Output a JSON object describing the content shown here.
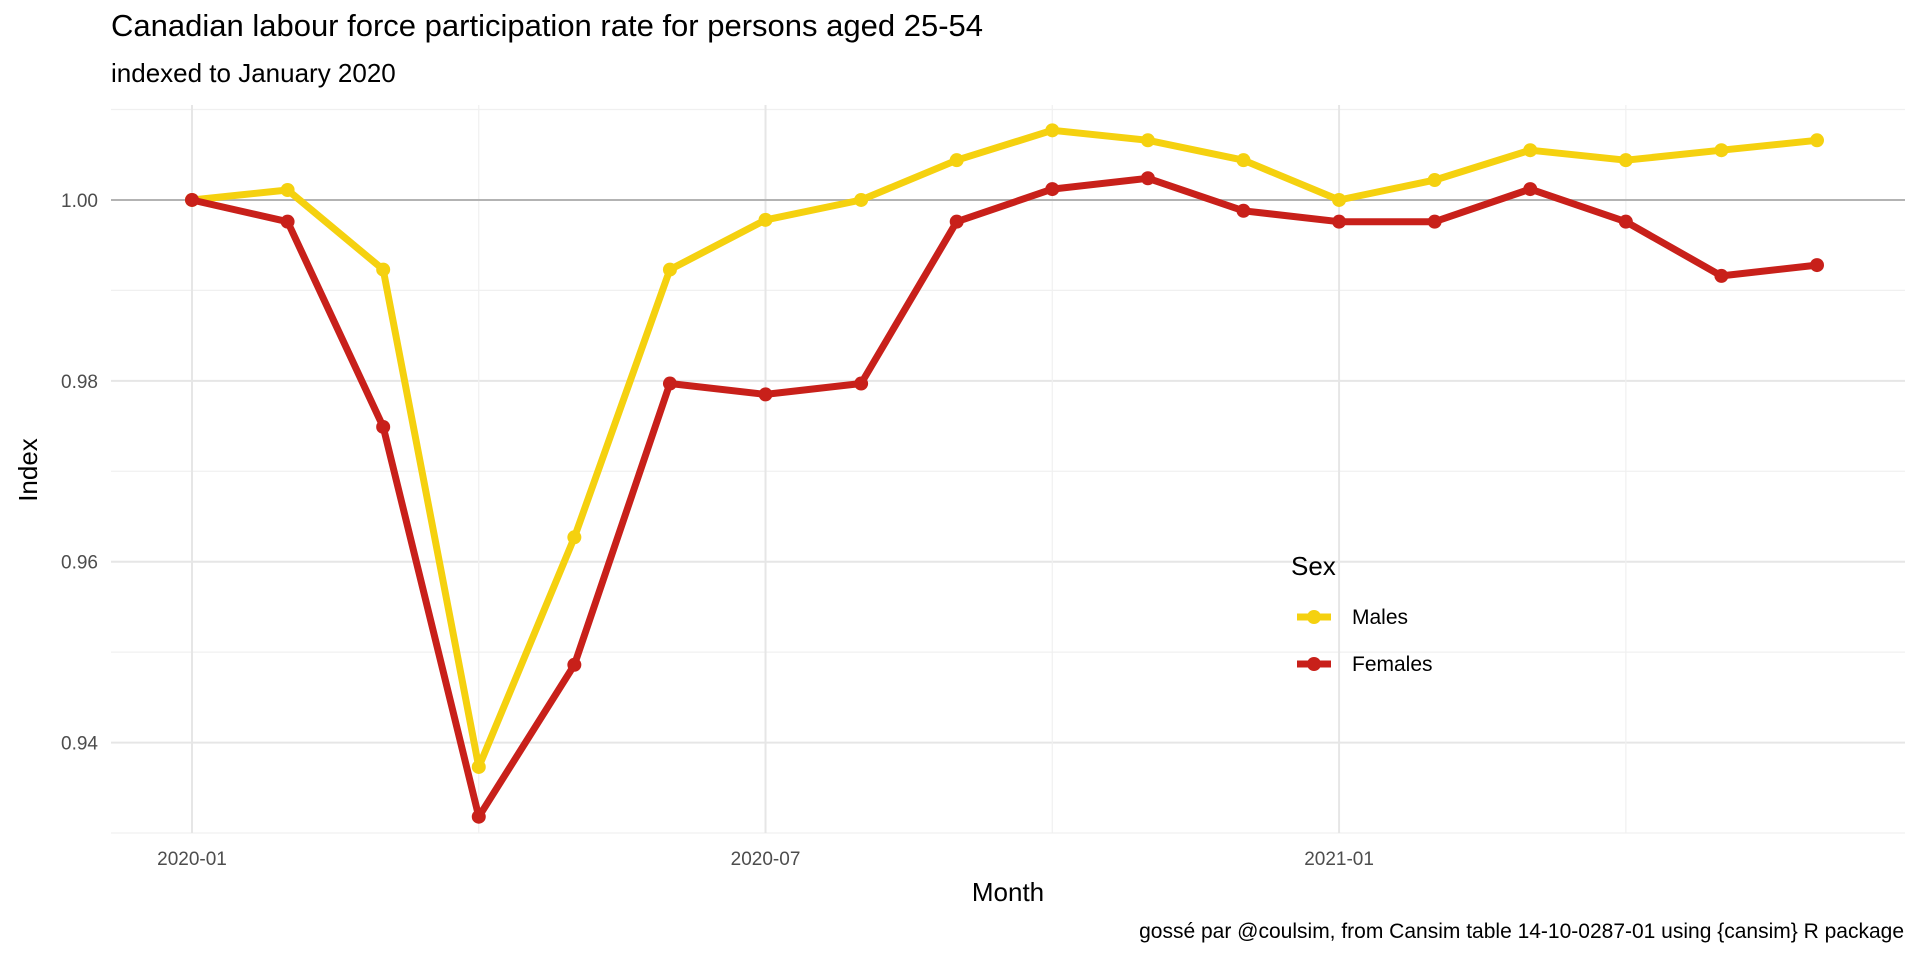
{
  "chart_data": {
    "type": "line",
    "title": "Canadian labour force participation rate for persons aged 25-54",
    "subtitle": "indexed to January 2020",
    "xlabel": "Month",
    "ylabel": "Index",
    "caption": "gossé par @coulsim, from Cansim table 14-10-0287-01 using {cansim} R package",
    "x": [
      "2020-01",
      "2020-02",
      "2020-03",
      "2020-04",
      "2020-05",
      "2020-06",
      "2020-07",
      "2020-08",
      "2020-09",
      "2020-10",
      "2020-11",
      "2020-12",
      "2021-01",
      "2021-02",
      "2021-03",
      "2021-04",
      "2021-05",
      "2021-06"
    ],
    "x_tick_labels": [
      "2020-01",
      "2020-07",
      "2021-01"
    ],
    "y_tick_labels": [
      "0.94",
      "0.96",
      "0.98",
      "1.00"
    ],
    "ylim": [
      0.93,
      1.0105
    ],
    "reference_line": 1.0,
    "grid": true,
    "legend": {
      "title": "Sex",
      "position": "inside-right"
    },
    "series": [
      {
        "name": "Males",
        "color": "#F5D10F",
        "values": [
          1.0,
          1.0011,
          0.9923,
          0.9373,
          0.9627,
          0.9923,
          0.9978,
          1.0,
          1.0044,
          1.0077,
          1.0066,
          1.0044,
          1.0,
          1.0022,
          1.0055,
          1.0044,
          1.0055,
          1.0066
        ]
      },
      {
        "name": "Females",
        "color": "#C8201A",
        "values": [
          1.0,
          0.9976,
          0.9749,
          0.9318,
          0.9486,
          0.9797,
          0.9785,
          0.9797,
          0.9976,
          1.0012,
          1.0024,
          0.9988,
          0.9976,
          0.9976,
          1.0012,
          0.9976,
          0.9916,
          0.9928
        ]
      }
    ]
  }
}
